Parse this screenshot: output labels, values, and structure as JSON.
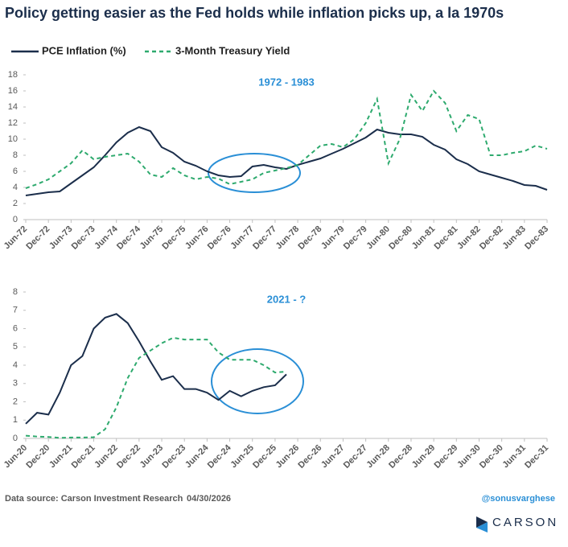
{
  "title": "Policy getting easier as the Fed holds while inflation picks up, a la 1970s",
  "footer": {
    "source": "Data source: Carson Investment Research",
    "date": "04/30/2026",
    "handle": "@sonusvarghese",
    "logo": "CARSON"
  },
  "chart_data": [
    {
      "type": "line",
      "annotation": "1972 - 1983",
      "categories": [
        "Jun-72",
        null,
        "Dec-72",
        null,
        "Jun-73",
        null,
        "Dec-73",
        null,
        "Jun-74",
        null,
        "Dec-74",
        null,
        "Jun-75",
        null,
        "Dec-75",
        null,
        "Jun-76",
        null,
        "Dec-76",
        null,
        "Jun-77",
        null,
        "Dec-77",
        null,
        "Jun-78",
        null,
        "Dec-78",
        null,
        "Jun-79",
        null,
        "Dec-79",
        null,
        "Jun-80",
        null,
        "Dec-80",
        null,
        "Jun-81",
        null,
        "Dec-81",
        null,
        "Jun-82",
        null,
        "Dec-82",
        null,
        "Jun-83",
        null,
        "Dec-83"
      ],
      "series": [
        {
          "name": "PCE Inflation (%)",
          "color": "#1b2e4b",
          "dashed": false,
          "values": [
            3.0,
            3.2,
            3.4,
            3.5,
            4.5,
            5.5,
            6.5,
            8.0,
            9.6,
            10.8,
            11.5,
            11.0,
            9.0,
            8.3,
            7.2,
            6.7,
            6.0,
            5.5,
            5.3,
            5.4,
            6.6,
            6.8,
            6.5,
            6.3,
            6.8,
            7.2,
            7.6,
            8.2,
            8.8,
            9.5,
            10.2,
            11.2,
            10.8,
            10.6,
            10.6,
            10.3,
            9.3,
            8.7,
            7.5,
            6.9,
            6.0,
            5.6,
            5.2,
            4.8,
            4.3,
            4.2,
            3.7
          ]
        },
        {
          "name": "3-Month Treasury Yield",
          "color": "#2eaa6e",
          "dashed": true,
          "values": [
            3.9,
            4.4,
            5.0,
            6.0,
            7.0,
            8.6,
            7.5,
            7.8,
            8.0,
            8.2,
            7.2,
            5.6,
            5.3,
            6.4,
            5.5,
            5.0,
            5.3,
            5.1,
            4.4,
            4.7,
            5.0,
            5.8,
            6.1,
            6.4,
            6.8,
            8.0,
            9.2,
            9.4,
            9.0,
            10.0,
            12.0,
            15.0,
            7.0,
            10.0,
            15.5,
            13.5,
            16.0,
            14.5,
            11.0,
            13.0,
            12.5,
            8.0,
            8.0,
            8.3,
            8.5,
            9.2,
            8.8
          ]
        }
      ],
      "ylim": [
        0,
        18
      ],
      "yticks": [
        0,
        2,
        4,
        6,
        8,
        10,
        12,
        14,
        16,
        18
      ]
    },
    {
      "type": "line",
      "annotation": "2021 - ?",
      "categories": [
        "Jun-20",
        null,
        "Dec-20",
        null,
        "Jun-21",
        null,
        "Dec-21",
        null,
        "Jun-22",
        null,
        "Dec-22",
        null,
        "Jun-23",
        null,
        "Dec-23",
        null,
        "Jun-24",
        null,
        "Dec-24",
        null,
        "Jun-25",
        null,
        "Dec-25",
        null,
        "Jun-26",
        null,
        "Dec-26",
        null,
        "Jun-27",
        null,
        "Dec-27",
        null,
        "Jun-28",
        null,
        "Dec-28",
        null,
        "Jun-29",
        null,
        "Dec-29",
        null,
        "Jun-30",
        null,
        "Dec-30",
        null,
        "Jun-31",
        null,
        "Dec-31"
      ],
      "series": [
        {
          "name": "PCE Inflation (%)",
          "color": "#1b2e4b",
          "dashed": false,
          "values": [
            0.8,
            1.4,
            1.3,
            2.5,
            4.0,
            4.5,
            6.0,
            6.6,
            6.8,
            6.3,
            5.3,
            4.2,
            3.2,
            3.4,
            2.7,
            2.7,
            2.5,
            2.1,
            2.6,
            2.3,
            2.6,
            2.8,
            2.9,
            3.5,
            null,
            null,
            null,
            null,
            null,
            null,
            null,
            null,
            null,
            null,
            null,
            null,
            null,
            null,
            null,
            null,
            null,
            null,
            null,
            null,
            null,
            null,
            null
          ]
        },
        {
          "name": "3-Month Treasury Yield",
          "color": "#2eaa6e",
          "dashed": true,
          "values": [
            0.15,
            0.1,
            0.08,
            0.03,
            0.05,
            0.05,
            0.06,
            0.5,
            1.7,
            3.3,
            4.4,
            4.8,
            5.2,
            5.5,
            5.4,
            5.4,
            5.4,
            4.7,
            4.3,
            4.3,
            4.3,
            4.0,
            3.6,
            3.65,
            null,
            null,
            null,
            null,
            null,
            null,
            null,
            null,
            null,
            null,
            null,
            null,
            null,
            null,
            null,
            null,
            null,
            null,
            null,
            null,
            null,
            null,
            null
          ]
        }
      ],
      "ylim": [
        0,
        8
      ],
      "yticks": [
        0,
        1,
        2,
        3,
        4,
        5,
        6,
        7,
        8
      ]
    }
  ]
}
